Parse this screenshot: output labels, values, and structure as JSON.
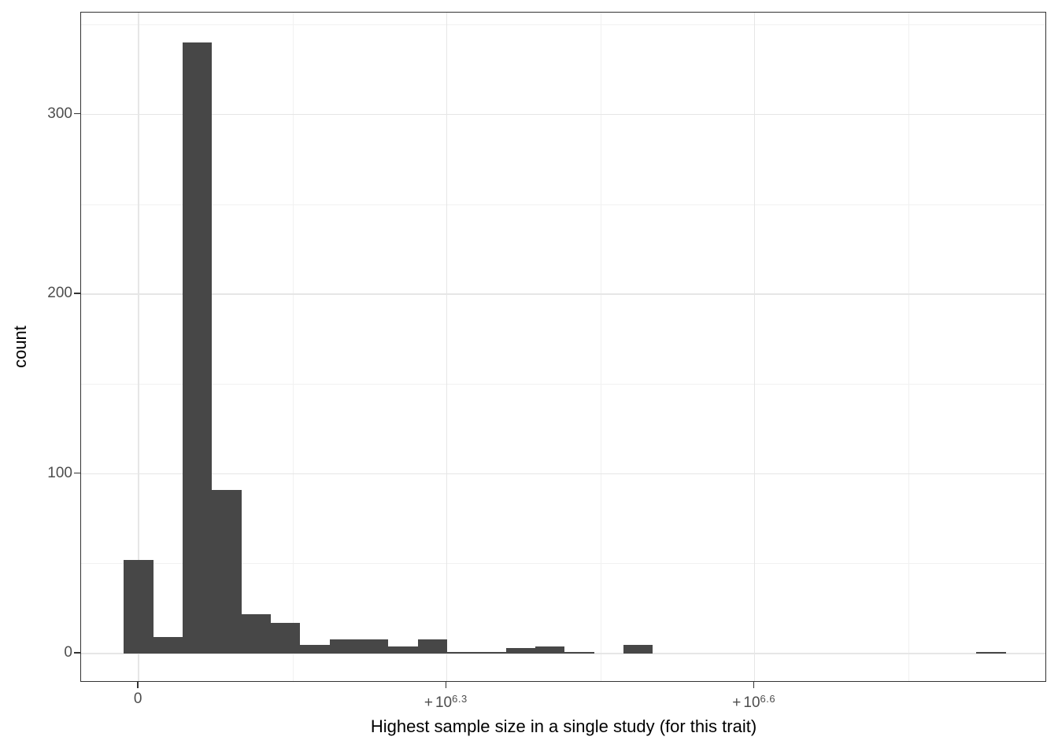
{
  "chart_data": {
    "type": "histogram",
    "title": "",
    "xlabel": "Highest sample size in a single study (for this trait)",
    "ylabel": "count",
    "bin_count": 30,
    "counts": [
      52,
      9,
      340,
      91,
      22,
      17,
      5,
      8,
      8,
      4,
      8,
      1,
      1,
      3,
      4,
      1,
      0,
      5,
      0,
      0,
      0,
      0,
      0,
      0,
      0,
      0,
      0,
      0,
      0,
      1
    ],
    "x_axis": {
      "scale": "pseudo-log10",
      "range_bin": [
        -1.45,
        31.4
      ],
      "ticks": [
        {
          "label": "0",
          "prefix": "",
          "base": "0",
          "exp": "",
          "bin_pos": 0.51
        },
        {
          "label": "+10^6.3",
          "prefix": "+",
          "base": "10",
          "exp": "6.3",
          "bin_pos": 10.98
        },
        {
          "label": "+10^6.6",
          "prefix": "+",
          "base": "10",
          "exp": "6.6",
          "bin_pos": 21.46
        }
      ],
      "minor_bin_pos": [
        5.75,
        16.22,
        26.7
      ]
    },
    "y_axis": {
      "range": [
        -16.2,
        356.8
      ],
      "ticks": [
        0,
        100,
        200,
        300
      ],
      "minor_ticks": [
        50,
        150,
        250,
        350
      ],
      "grid": true
    },
    "legend": "none"
  },
  "colors": {
    "bar": "#474747",
    "panel_border": "#333333",
    "grid_major": "#e6e6e6",
    "grid_minor": "#f1f1f1",
    "tick_mark": "#333333",
    "tick_label": "#4d4d4d",
    "axis_title": "#000000",
    "background": "#ffffff"
  }
}
